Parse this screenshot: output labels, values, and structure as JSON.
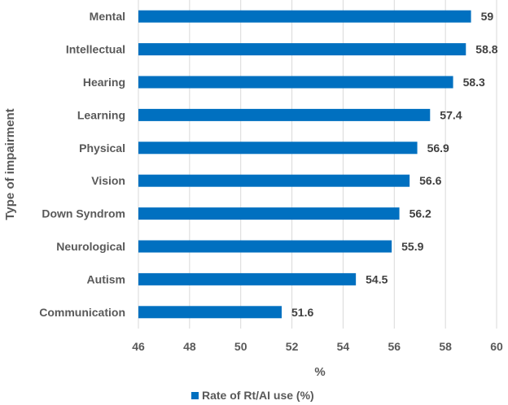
{
  "chart_data": {
    "type": "bar",
    "orientation": "horizontal",
    "title": "",
    "categories": [
      "Mental",
      "Intellectual",
      "Hearing",
      "Learning",
      "Physical",
      "Vision",
      "Down Syndrom",
      "Neurological",
      "Autism",
      "Communication"
    ],
    "series": [
      {
        "name": "Rate of Rt/AI use (%)",
        "values": [
          59,
          58.8,
          58.3,
          57.4,
          56.9,
          56.6,
          56.2,
          55.9,
          54.5,
          51.6
        ],
        "color": "#0070C0"
      }
    ],
    "xlabel": "%",
    "ylabel": "Type of impairment",
    "xlim": [
      46,
      60
    ],
    "xticks": [
      46,
      48,
      50,
      52,
      54,
      56,
      58,
      60
    ],
    "value_labels": [
      "59",
      "58.8",
      "58.3",
      "57.4",
      "56.9",
      "56.6",
      "56.2",
      "55.9",
      "54.5",
      "51.6"
    ],
    "grid": "vertical",
    "legend": "bottom"
  }
}
